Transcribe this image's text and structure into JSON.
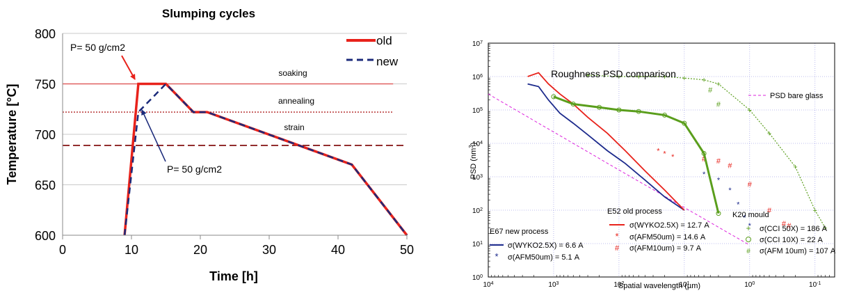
{
  "chart_data": [
    {
      "type": "line",
      "title": "Slumping cycles",
      "xlabel": "Time [h]",
      "ylabel": "Temperature [°C]",
      "xlim": [
        0,
        50
      ],
      "ylim": [
        600,
        800
      ],
      "xticks": [
        "0",
        "10",
        "20",
        "30",
        "40",
        "50"
      ],
      "yticks": [
        "600",
        "650",
        "700",
        "750",
        "800"
      ],
      "grid": true,
      "legend": "top-right",
      "colors": {
        "old": "#e8221b",
        "new": "#1b2a7a",
        "soaking": "#e06060",
        "annealing": "#b02020",
        "strain": "#8b2020"
      },
      "series": [
        {
          "name": "old",
          "x": [
            9,
            11,
            15,
            19,
            21,
            42,
            50
          ],
          "y": [
            600,
            750,
            750,
            722,
            722,
            670,
            600
          ]
        },
        {
          "name": "new",
          "x": [
            9,
            11,
            15,
            19,
            21,
            42,
            50
          ],
          "y": [
            600,
            722,
            750,
            722,
            722,
            670,
            600
          ]
        }
      ],
      "reference_lines": [
        {
          "label": "soaking",
          "y": 750
        },
        {
          "label": "annealing",
          "y": 722
        },
        {
          "label": "strain",
          "y": 689
        }
      ],
      "annotations": [
        {
          "text": "P= 50 g/cm2",
          "x": 11,
          "y": 750
        },
        {
          "text": "P= 50 g/cm2",
          "x": 11,
          "y": 722
        }
      ]
    },
    {
      "type": "scatter",
      "title": "Roughness PSD comparison",
      "xlabel": "Spatial wavelength (µm)",
      "ylabel": "PSD (nm",
      "ylabel_sup": "3",
      "ylabel_end": ")",
      "x_scale": "log-reversed",
      "y_scale": "log",
      "xlim": [
        10000,
        0.05
      ],
      "ylim": [
        1,
        10000000
      ],
      "xticks": [
        {
          "v": 10000,
          "b": "10",
          "e": "4"
        },
        {
          "v": 1000,
          "b": "10",
          "e": "3"
        },
        {
          "v": 100,
          "b": "10",
          "e": "2"
        },
        {
          "v": 10,
          "b": "10",
          "e": "1"
        },
        {
          "v": 1,
          "b": "10",
          "e": "0"
        },
        {
          "v": 0.1,
          "b": "10",
          "e": "-1"
        }
      ],
      "yticks": [
        {
          "v": 1,
          "b": "10",
          "e": "0"
        },
        {
          "v": 10,
          "b": "10",
          "e": "1"
        },
        {
          "v": 100,
          "b": "10",
          "e": "2"
        },
        {
          "v": 1000,
          "b": "10",
          "e": "3"
        },
        {
          "v": 10000,
          "b": "10",
          "e": "4"
        },
        {
          "v": 100000,
          "b": "10",
          "e": "5"
        },
        {
          "v": 1000000,
          "b": "10",
          "e": "6"
        },
        {
          "v": 10000000,
          "b": "10",
          "e": "7"
        }
      ],
      "grid": true,
      "colors": {
        "navy": "#1c2a8c",
        "red": "#e8221b",
        "green": "#5a9e1c",
        "magenta": "#dd22dd"
      },
      "legend_groups": [
        {
          "heading": "E67 new process",
          "entries": [
            "σ(WYKO2.5X) = 6.6  A",
            "σ(AFM50um) = 5.1 A"
          ]
        },
        {
          "heading": "E52 old process",
          "entries": [
            "σ(WYKO2.5X) = 12.7  A",
            "σ(AFM50um) = 14.6 A",
            "σ(AFM10um) = 9.7 A"
          ]
        },
        {
          "heading": "K20 mould",
          "entries": [
            "σ(CCI 50X) = 186  A",
            "σ(CCI 10X) = 22  A",
            "σ(AFM 10um) = 107  A"
          ]
        }
      ],
      "series": [
        {
          "name": "PSD bare glass",
          "x": [
            10000,
            1000,
            100,
            10,
            1
          ],
          "y": [
            300000,
            22000,
            1600,
            120,
            9
          ]
        },
        {
          "name": "σ(WYKO2.5X) = 6.6  A",
          "x": [
            2500,
            1700,
            1200,
            800,
            500,
            300,
            150,
            80,
            40,
            20,
            10
          ],
          "y": [
            600000,
            500000,
            200000,
            80000,
            40000,
            18000,
            6000,
            2500,
            800,
            250,
            100
          ]
        },
        {
          "name": "σ(AFM50um) = 5.1 A",
          "x": [
            5,
            3,
            2,
            1.5,
            1.2,
            1
          ],
          "y": [
            1200,
            800,
            400,
            150,
            60,
            35
          ]
        },
        {
          "name": "σ(WYKO2.5X) = 12.7  A",
          "x": [
            2500,
            1700,
            1200,
            800,
            500,
            300,
            150,
            80,
            40,
            20,
            10
          ],
          "y": [
            1000000,
            1300000,
            600000,
            300000,
            150000,
            60000,
            20000,
            6000,
            1500,
            400,
            100
          ]
        },
        {
          "name": "σ(AFM50um) = 14.6 A",
          "x": [
            25,
            20,
            15
          ],
          "y": [
            6000,
            5000,
            4000
          ]
        },
        {
          "name": "σ(AFM10um) = 9.7 A",
          "x": [
            5,
            3,
            2,
            1,
            0.5,
            0.3,
            0.25
          ],
          "y": [
            3500,
            3000,
            2200,
            600,
            100,
            40,
            35
          ]
        },
        {
          "name": "σ(CCI 50X) = 186  A",
          "x": [
            300,
            100,
            50,
            20,
            10,
            5,
            3,
            1,
            0.5,
            0.2,
            0.1,
            0.07
          ],
          "y": [
            1100000,
            1000000,
            1000000,
            1000000,
            900000,
            800000,
            600000,
            100000,
            20000,
            2000,
            100,
            30
          ]
        },
        {
          "name": "σ(CCI 10X) = 22  A",
          "x": [
            1000,
            500,
            200,
            100,
            50,
            20,
            10,
            5,
            3
          ],
          "y": [
            250000,
            150000,
            120000,
            100000,
            90000,
            70000,
            40000,
            5000,
            80
          ]
        },
        {
          "name": "σ(AFM 10um) = 107  A",
          "x": [
            4,
            3
          ],
          "y": [
            400000,
            150000
          ]
        }
      ]
    }
  ]
}
